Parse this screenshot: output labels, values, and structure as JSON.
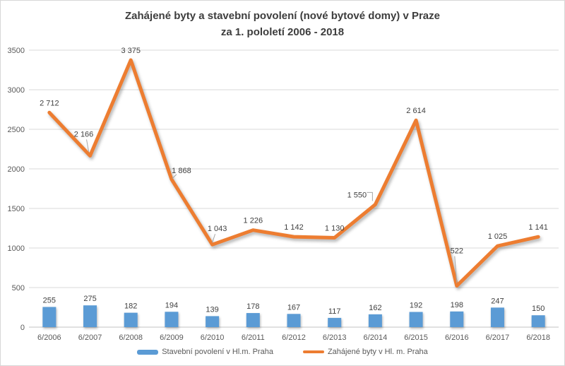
{
  "title": {
    "line1": "Zahájené byty a stavební povolení (nové bytové domy) v Praze",
    "line2": "za 1. pololetí 2006 - 2018"
  },
  "chart_data": {
    "type": "combo",
    "title": "Zahájené byty a stavební povolení (nové bytové domy) v Praze za 1. pololetí 2006 - 2018",
    "categories": [
      "6/2006",
      "6/2007",
      "6/2008",
      "6/2009",
      "6/2010",
      "6/2011",
      "6/2012",
      "6/2013",
      "6/2014",
      "6/2015",
      "6/2016",
      "6/2017",
      "6/2018"
    ],
    "series": [
      {
        "name": "Stavební povolení v Hl.m. Praha",
        "type": "bar",
        "color": "#5B9BD5",
        "values": [
          255,
          275,
          182,
          194,
          139,
          178,
          167,
          117,
          162,
          192,
          198,
          247,
          150
        ]
      },
      {
        "name": "Zahájené byty v Hl. m. Praha",
        "type": "line",
        "color": "#ED7D31",
        "values": [
          2712,
          2166,
          3375,
          1868,
          1043,
          1226,
          1142,
          1130,
          1550,
          2614,
          522,
          1025,
          1141
        ]
      }
    ],
    "ylim": [
      0,
      3500
    ],
    "ytick_step": 500,
    "grid": true,
    "legend_position": "bottom",
    "data_labels": true,
    "number_format": "space-thousands",
    "colors": {
      "gridline": "#d9d9d9",
      "axis_text": "#595959",
      "label_text": "#404040"
    }
  }
}
